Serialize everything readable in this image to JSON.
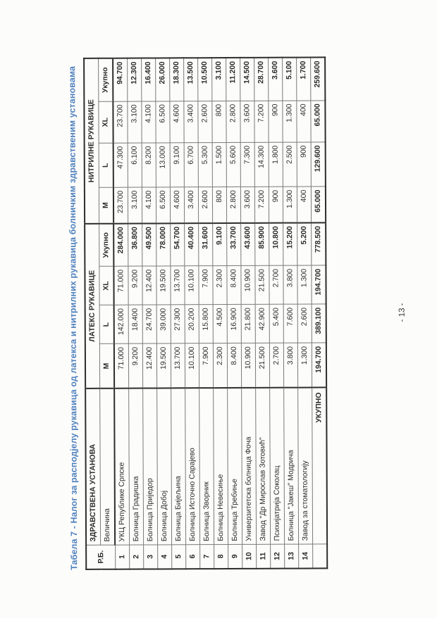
{
  "meta": {
    "title_color": "#4f81bd",
    "page_number": "- 13 -"
  },
  "title": "Табела 7 - Налог за расподјелу рукавица од латекса и нитрилних рукавица болничким здравственим установама",
  "table": {
    "headers": {
      "rb": "Р.Б.",
      "institution": "ЗДРАВСТВЕНА УСТАНОВА",
      "size_label": "Величина",
      "latex_group": "ЛАТЕКС РУКАВИЦЕ",
      "nitrile_group": "НИТРИЛНЕ РУКАВИЦЕ",
      "sizes": [
        "М",
        "L",
        "XL",
        "Укупно"
      ]
    },
    "rows": [
      {
        "rb": "1",
        "name": "УКЦ Републике Српске",
        "latex": [
          "71.000",
          "142.000",
          "71.000",
          "284.000"
        ],
        "nitrile": [
          "23.700",
          "47.300",
          "23.700",
          "94.700"
        ]
      },
      {
        "rb": "2",
        "name": "Болница Градишка",
        "latex": [
          "9.200",
          "18.400",
          "9.200",
          "36.800"
        ],
        "nitrile": [
          "3.100",
          "6.100",
          "3.100",
          "12.300"
        ]
      },
      {
        "rb": "3",
        "name": "Болница Приједор",
        "latex": [
          "12.400",
          "24.700",
          "12.400",
          "49.500"
        ],
        "nitrile": [
          "4.100",
          "8.200",
          "4.100",
          "16.400"
        ]
      },
      {
        "rb": "4",
        "name": "Болница Добој",
        "latex": [
          "19.500",
          "39.000",
          "19.500",
          "78.000"
        ],
        "nitrile": [
          "6.500",
          "13.000",
          "6.500",
          "26.000"
        ]
      },
      {
        "rb": "5",
        "name": "Болница Бијељина",
        "latex": [
          "13.700",
          "27.300",
          "13.700",
          "54.700"
        ],
        "nitrile": [
          "4.600",
          "9.100",
          "4.600",
          "18.300"
        ]
      },
      {
        "rb": "6",
        "name": "Болница Источно Сарајево",
        "latex": [
          "10.100",
          "20.200",
          "10.100",
          "40.400"
        ],
        "nitrile": [
          "3.400",
          "6.700",
          "3.400",
          "13.500"
        ]
      },
      {
        "rb": "7",
        "name": "Болница Зворник",
        "latex": [
          "7.900",
          "15.800",
          "7.900",
          "31.600"
        ],
        "nitrile": [
          "2.600",
          "5.300",
          "2.600",
          "10.500"
        ]
      },
      {
        "rb": "8",
        "name": "Болница Невесиње",
        "latex": [
          "2.300",
          "4.500",
          "2.300",
          "9.100"
        ],
        "nitrile": [
          "800",
          "1.500",
          "800",
          "3.100"
        ]
      },
      {
        "rb": "9",
        "name": "Болница Требиње",
        "latex": [
          "8.400",
          "16.900",
          "8.400",
          "33.700"
        ],
        "nitrile": [
          "2.800",
          "5.600",
          "2.800",
          "11.200"
        ]
      },
      {
        "rb": "10",
        "name": "Универзитетска болница Фоча",
        "latex": [
          "10.900",
          "21.800",
          "10.900",
          "43.600"
        ],
        "nitrile": [
          "3.600",
          "7.300",
          "3.600",
          "14.500"
        ]
      },
      {
        "rb": "11",
        "name": "Завод \"Др Мирослав Зотовић\"",
        "latex": [
          "21.500",
          "42.900",
          "21.500",
          "85.900"
        ],
        "nitrile": [
          "7.200",
          "14.300",
          "7.200",
          "28.700"
        ]
      },
      {
        "rb": "12",
        "name": "Психијатрија Соколац",
        "latex": [
          "2.700",
          "5.400",
          "2.700",
          "10.800"
        ],
        "nitrile": [
          "900",
          "1.800",
          "900",
          "3.600"
        ]
      },
      {
        "rb": "13",
        "name": "Болница \"Јакеш\" Модрича",
        "latex": [
          "3.800",
          "7.600",
          "3.800",
          "15.200"
        ],
        "nitrile": [
          "1.300",
          "2.500",
          "1.300",
          "5.100"
        ]
      },
      {
        "rb": "14",
        "name": "Завод за стоматологију",
        "latex": [
          "1.300",
          "2.600",
          "1.300",
          "5.200"
        ],
        "nitrile": [
          "400",
          "900",
          "400",
          "1.700"
        ]
      }
    ],
    "total": {
      "label": "УКУПНО",
      "latex": [
        "194.700",
        "389.100",
        "194.700",
        "778.500"
      ],
      "nitrile": [
        "65.000",
        "129.600",
        "65.000",
        "259.600"
      ]
    }
  }
}
